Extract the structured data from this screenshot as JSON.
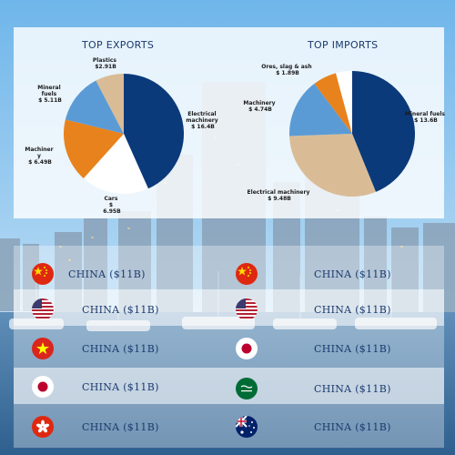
{
  "chart_data": [
    {
      "type": "pie",
      "title": "TOP EXPORTS",
      "slices": [
        {
          "label": "Electrical machinery",
          "value_text": "$ 16.4B",
          "value": 16.4,
          "color": "#0b3a7a"
        },
        {
          "label": "Cars",
          "value_text": "$ 6.95B",
          "value": 6.95,
          "color": "#ffffff"
        },
        {
          "label": "Machinery",
          "value_text": "$ 6.49B",
          "value": 6.49,
          "color": "#e8821c"
        },
        {
          "label": "Mineral fuels",
          "value_text": "$ 5.11B",
          "value": 5.11,
          "color": "#5b9bd5"
        },
        {
          "label": "Plastics",
          "value_text": "$2.91B",
          "value": 2.91,
          "color": "#d9bc96"
        }
      ]
    },
    {
      "type": "pie",
      "title": "TOP IMPORTS",
      "slices": [
        {
          "label": "Mineral fuels",
          "value_text": "$ 13.6B",
          "value": 13.6,
          "color": "#0b3a7a"
        },
        {
          "label": "Electrical machinery",
          "value_text": "$ 9.48B",
          "value": 9.48,
          "color": "#d9bc96"
        },
        {
          "label": "Machinery",
          "value_text": "$ 4.74B",
          "value": 4.74,
          "color": "#5b9bd5"
        },
        {
          "label": "Ores, slag & ash",
          "value_text": "$ 1.89B",
          "value": 1.89,
          "color": "#e8821c"
        },
        {
          "label": "",
          "value_text": "",
          "value": 1.3,
          "color": "#ffffff"
        }
      ]
    }
  ],
  "partners": {
    "exports": [
      {
        "flag": "china-flag-icon",
        "text": "CHINA ($11B)"
      },
      {
        "flag": "usa-flag-icon",
        "text": "CHINA ($11B)"
      },
      {
        "flag": "vietnam-flag-icon",
        "text": "CHINA ($11B)"
      },
      {
        "flag": "japan-flag-icon",
        "text": "CHINA ($11B)"
      },
      {
        "flag": "hong-kong-flag-icon",
        "text": "CHINA ($11B)"
      }
    ],
    "imports": [
      {
        "flag": "china-flag-icon",
        "text": "CHINA ($11B)"
      },
      {
        "flag": "usa-flag-icon",
        "text": "CHINA ($11B)"
      },
      {
        "flag": "japan-flag-icon",
        "text": "CHINA ($11B)"
      },
      {
        "flag": "saudi-arabia-flag-icon",
        "text": "CHINA ($11B)"
      },
      {
        "flag": "australia-flag-icon",
        "text": "CHINA ($11B)"
      }
    ]
  }
}
